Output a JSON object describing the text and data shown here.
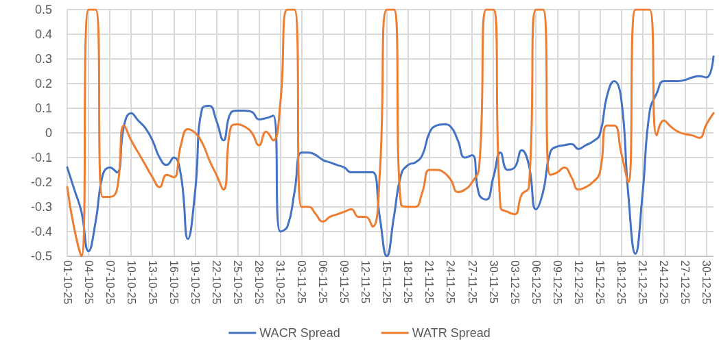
{
  "chart_data": {
    "type": "line",
    "categories": [
      "01-10-25",
      null,
      null,
      "04-10-25",
      null,
      null,
      "07-10-25",
      null,
      null,
      "10-10-25",
      null,
      null,
      "13-10-25",
      null,
      null,
      "16-10-25",
      null,
      null,
      "19-10-25",
      null,
      null,
      "22-10-25",
      null,
      null,
      "25-10-25",
      null,
      null,
      "28-10-25",
      null,
      null,
      "31-10-25",
      null,
      null,
      "03-11-25",
      null,
      null,
      "06-11-25",
      null,
      null,
      "09-11-25",
      null,
      null,
      "12-11-25",
      null,
      null,
      "15-11-25",
      null,
      null,
      "18-11-25",
      null,
      null,
      "21-11-25",
      null,
      null,
      "24-11-25",
      null,
      null,
      "27-11-25",
      null,
      null,
      "30-11-25",
      null,
      null,
      "03-12-25",
      null,
      null,
      "06-12-25",
      null,
      null,
      "09-12-25",
      null,
      null,
      "12-12-25",
      null,
      null,
      "15-12-25",
      null,
      null,
      "18-12-25",
      null,
      null,
      "21-12-25",
      null,
      null,
      "24-12-25",
      null,
      null,
      "27-12-25",
      null,
      null,
      "30-12-25",
      null
    ],
    "series": [
      {
        "name": "WACR Spread",
        "color": "#4472c4",
        "values": [
          -0.14,
          -0.23,
          -0.32,
          -0.48,
          -0.36,
          -0.17,
          -0.14,
          -0.16,
          0.03,
          0.08,
          0.05,
          0.02,
          -0.03,
          -0.1,
          -0.13,
          -0.1,
          -0.17,
          -0.43,
          -0.24,
          0.1,
          0.11,
          0.05,
          -0.03,
          0.08,
          0.09,
          0.09,
          0.085,
          0.055,
          0.06,
          0.07,
          -0.4,
          -0.38,
          -0.24,
          -0.08,
          -0.08,
          -0.09,
          -0.11,
          -0.12,
          -0.13,
          -0.14,
          -0.16,
          -0.16,
          -0.16,
          -0.16,
          -0.34,
          -0.5,
          -0.34,
          -0.17,
          -0.13,
          -0.12,
          -0.09,
          0,
          0.03,
          0.035,
          0.025,
          -0.03,
          -0.1,
          -0.09,
          -0.25,
          -0.27,
          -0.18,
          -0.08,
          -0.15,
          -0.14,
          -0.07,
          -0.13,
          -0.31,
          -0.24,
          -0.08,
          -0.055,
          -0.05,
          -0.045,
          -0.065,
          -0.05,
          -0.035,
          -0.005,
          0.15,
          0.21,
          0.14,
          -0.25,
          -0.49,
          -0.25,
          0.085,
          0.16,
          0.21,
          0.21,
          0.21,
          0.215,
          0.225,
          0.23,
          0.225,
          0.31
        ]
      },
      {
        "name": "WATR Spread",
        "color": "#ed7d31",
        "values": [
          -0.22,
          -0.39,
          -0.5,
          0.5,
          0.5,
          -0.26,
          -0.26,
          -0.23,
          0.03,
          -0.03,
          -0.08,
          -0.13,
          -0.18,
          -0.22,
          -0.17,
          -0.18,
          -0.05,
          0.015,
          0,
          -0.04,
          -0.11,
          -0.17,
          -0.23,
          0.02,
          0.035,
          0.025,
          0,
          -0.05,
          0.005,
          -0.03,
          0.12,
          0.5,
          0.5,
          -0.3,
          -0.3,
          -0.33,
          -0.36,
          -0.34,
          -0.33,
          -0.32,
          -0.31,
          -0.34,
          -0.34,
          -0.38,
          -0.17,
          0.5,
          0.5,
          -0.29,
          -0.3,
          -0.3,
          -0.24,
          -0.15,
          -0.15,
          -0.16,
          -0.19,
          -0.24,
          -0.23,
          -0.2,
          -0.14,
          0.5,
          0.5,
          -0.3,
          -0.32,
          -0.33,
          -0.25,
          -0.22,
          0.5,
          0.5,
          -0.17,
          -0.16,
          -0.14,
          -0.18,
          -0.23,
          -0.22,
          -0.2,
          -0.16,
          0.03,
          0.03,
          -0.08,
          -0.2,
          0.5,
          0.5,
          0.5,
          -0.01,
          0.05,
          0.025,
          0.005,
          -0.005,
          -0.01,
          -0.02,
          0.035,
          0.08
        ]
      }
    ],
    "ylim": [
      -0.5,
      0.5
    ],
    "yticks": [
      -0.5,
      -0.4,
      -0.3,
      -0.2,
      -0.1,
      0,
      0.1,
      0.2,
      0.3,
      0.4,
      0.5
    ],
    "grid": true,
    "legend": "bottom",
    "marker": "none",
    "line_style": "solid"
  }
}
